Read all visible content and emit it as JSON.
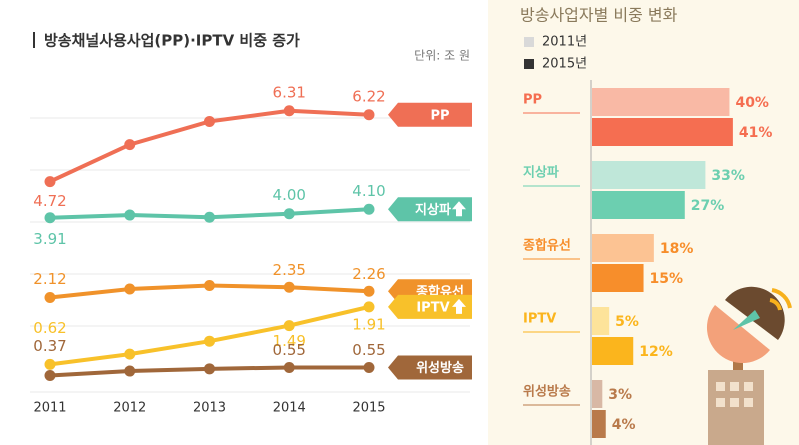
{
  "chart_data": [
    {
      "type": "line",
      "title": "방송채널사용사업(PP)·IPTV 비중 증가",
      "unit": "단위: 조 원",
      "categories": [
        "2011",
        "2012",
        "2013",
        "2014",
        "2015"
      ],
      "ylim": [
        0,
        7
      ],
      "series": [
        {
          "name": "PP",
          "color": "#ef6f55",
          "values": [
            4.72,
            5.55,
            6.07,
            6.31,
            6.22
          ],
          "value_labels": [
            "4.72",
            null,
            null,
            "6.31",
            "6.22"
          ]
        },
        {
          "name": "지상파",
          "color": "#5ec4a8",
          "tag_icon": "up",
          "values": [
            3.91,
            3.97,
            3.92,
            4.0,
            4.1
          ],
          "value_labels": [
            "3.91",
            null,
            null,
            "4.00",
            "4.10"
          ]
        },
        {
          "name": "종합유선",
          "color": "#f0922a",
          "values": [
            2.12,
            2.31,
            2.39,
            2.35,
            2.26
          ],
          "value_labels": [
            "2.12",
            null,
            null,
            "2.35",
            "2.26"
          ]
        },
        {
          "name": "IPTV",
          "color": "#f8c12a",
          "tag_icon": "up",
          "values": [
            0.62,
            0.85,
            1.14,
            1.49,
            1.91
          ],
          "value_labels": [
            "0.62",
            null,
            null,
            "1.49",
            "1.91"
          ]
        },
        {
          "name": "위성방송",
          "color": "#a0673a",
          "values": [
            0.37,
            0.47,
            0.52,
            0.55,
            0.55
          ],
          "value_labels": [
            "0.37",
            null,
            null,
            "0.55",
            "0.55"
          ]
        }
      ]
    },
    {
      "type": "hbar",
      "title": "방송사업자별 비중 변화",
      "categories": [
        "PP",
        "지상파",
        "종합유선",
        "IPTV",
        "위성방송"
      ],
      "xlim": [
        0,
        55
      ],
      "series": [
        {
          "name": "2011년",
          "color": "#d9d9d9",
          "colors": [
            "#f9b9a5",
            "#bfe7d9",
            "#fcc393",
            "#fde39a",
            "#d8b8a5"
          ],
          "values": [
            40,
            33,
            18,
            5,
            3
          ],
          "value_labels": [
            "40%",
            "33%",
            "18%",
            "5%",
            "3%"
          ]
        },
        {
          "name": "2015년",
          "color": "#333333",
          "colors": [
            "#f56e51",
            "#6ccfb0",
            "#f78e2b",
            "#fbb51d",
            "#b97a4b"
          ],
          "values": [
            41,
            27,
            15,
            12,
            4
          ],
          "value_labels": [
            "41%",
            "27%",
            "15%",
            "12%",
            "4%"
          ]
        }
      ]
    }
  ]
}
